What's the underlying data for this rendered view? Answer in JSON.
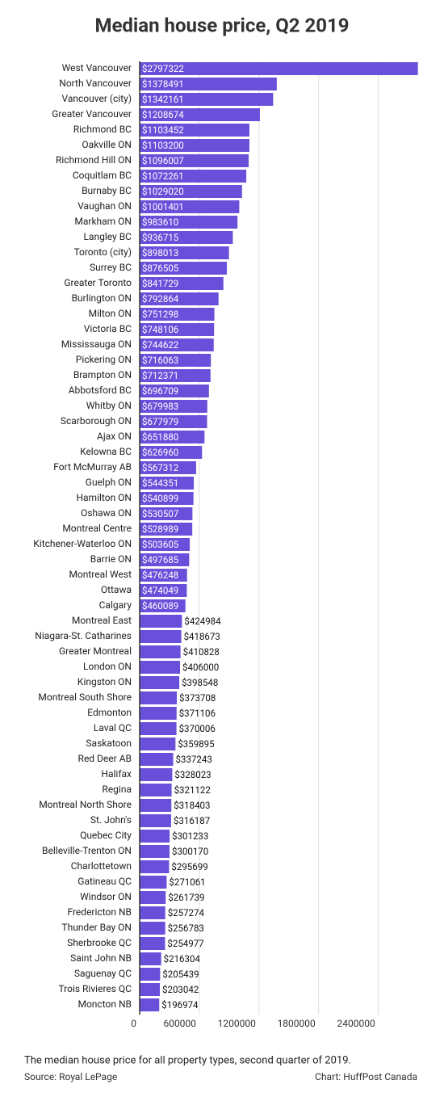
{
  "chart_data": {
    "type": "bar",
    "orientation": "horizontal",
    "title": "Median house price, Q2 2019",
    "note": "The median house price for all property types, second quarter of 2019.",
    "source": "Source: Royal LePage",
    "credit": "Chart: HuffPost Canada",
    "color": "#6a4fdb",
    "grid": true,
    "xlim": [
      0,
      2800000
    ],
    "xticks": [
      0,
      600000,
      1200000,
      1800000,
      2400000
    ],
    "categories": [
      "West Vancouver",
      "North Vancouver",
      "Vancouver (city)",
      "Greater Vancouver",
      "Richmond BC",
      "Oakville ON",
      "Richmond Hill ON",
      "Coquitlam BC",
      "Burnaby BC",
      "Vaughan ON",
      "Markham ON",
      "Langley BC",
      "Toronto (city)",
      "Surrey BC",
      "Greater Toronto",
      "Burlington ON",
      "Milton ON",
      "Victoria BC",
      "Mississauga ON",
      "Pickering ON",
      "Brampton ON",
      "Abbotsford BC",
      "Whitby ON",
      "Scarborough ON",
      "Ajax ON",
      "Kelowna BC",
      "Fort McMurray AB",
      "Guelph ON",
      "Hamilton ON",
      "Oshawa ON",
      "Montreal Centre",
      "Kitchener-Waterloo ON",
      "Barrie ON",
      "Montreal West",
      "Ottawa",
      "Calgary",
      "Montreal East",
      "Niagara-St. Catharines",
      "Greater Montreal",
      "London ON",
      "Kingston ON",
      "Montreal South Shore",
      "Edmonton",
      "Laval QC",
      "Saskatoon",
      "Red Deer AB",
      "Halifax",
      "Regina",
      "Montreal North Shore",
      "St. John's",
      "Quebec City",
      "Belleville-Trenton ON",
      "Charlottetown",
      "Gatineau QC",
      "Windsor ON",
      "Fredericton NB",
      "Thunder Bay ON",
      "Sherbrooke QC",
      "Saint John NB",
      "Saguenay QC",
      "Trois Rivieres QC",
      "Moncton NB"
    ],
    "values": [
      2797322,
      1378491,
      1342161,
      1208674,
      1103452,
      1103200,
      1096007,
      1072261,
      1029020,
      1001401,
      983610,
      936715,
      898013,
      876505,
      841729,
      792864,
      751298,
      748106,
      744622,
      716063,
      712371,
      696709,
      679983,
      677979,
      651880,
      626960,
      567312,
      544351,
      540899,
      530507,
      528989,
      503605,
      497685,
      476248,
      474049,
      460089,
      424984,
      418673,
      410828,
      406000,
      398548,
      373708,
      371106,
      370006,
      359895,
      337243,
      328023,
      321122,
      318403,
      316187,
      301233,
      300170,
      295699,
      271061,
      261739,
      257274,
      256783,
      254977,
      216304,
      205439,
      203042,
      196974
    ],
    "value_labels": [
      "$2797322",
      "$1378491",
      "$1342161",
      "$1208674",
      "$1103452",
      "$1103200",
      "$1096007",
      "$1072261",
      "$1029020",
      "$1001401",
      "$983610",
      "$936715",
      "$898013",
      "$876505",
      "$841729",
      "$792864",
      "$751298",
      "$748106",
      "$744622",
      "$716063",
      "$712371",
      "$696709",
      "$679983",
      "$677979",
      "$651880",
      "$626960",
      "$567312",
      "$544351",
      "$540899",
      "$530507",
      "$528989",
      "$503605",
      "$497685",
      "$476248",
      "$474049",
      "$460089",
      "$424984",
      "$418673",
      "$410828",
      "$406000",
      "$398548",
      "$373708",
      "$371106",
      "$370006",
      "$359895",
      "$337243",
      "$328023",
      "$321122",
      "$318403",
      "$316187",
      "$301233",
      "$300170",
      "$295699",
      "$271061",
      "$261739",
      "$257274",
      "$256783",
      "$254977",
      "$216304",
      "$205439",
      "$203042",
      "$196974"
    ]
  }
}
